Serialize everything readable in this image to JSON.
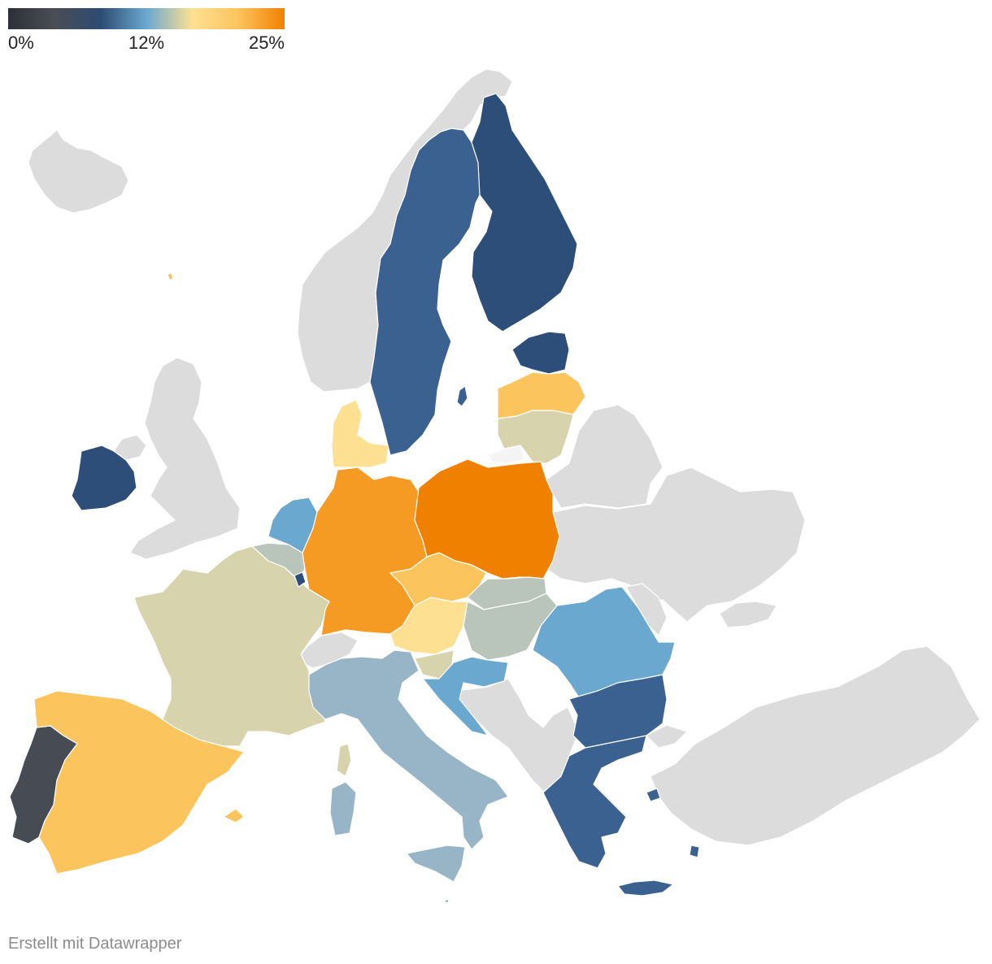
{
  "legend": {
    "ticks": [
      "0%",
      "12%",
      "25%"
    ],
    "gradient": [
      "#2c3037",
      "#4a4d55",
      "#2d4b72",
      "#6aa8d0",
      "#fde092",
      "#fcc45c",
      "#f08100"
    ]
  },
  "credit": "Erstellt mit Datawrapper",
  "colors": {
    "no_data": "#dcdcdc",
    "dark_navy": "#2c4e78",
    "navy": "#3b6190",
    "sky_blue": "#6aa8d0",
    "steel_blue": "#97b5c7",
    "sage": "#b9c5bb",
    "beige": "#d7d3ad",
    "pale_yellow": "#fde092",
    "light_gold": "#fcc45c",
    "orange": "#f59b23",
    "deep_orange": "#f08100",
    "charcoal": "#474b54",
    "near_white": "#f4f4f4"
  },
  "countries": [
    {
      "name": "Portugal",
      "color": "charcoal"
    },
    {
      "name": "Spain",
      "color": "light_gold"
    },
    {
      "name": "France",
      "color": "beige"
    },
    {
      "name": "Ireland",
      "color": "dark_navy"
    },
    {
      "name": "Belgium",
      "color": "sage"
    },
    {
      "name": "Luxembourg",
      "color": "dark_navy"
    },
    {
      "name": "Netherlands",
      "color": "sky_blue"
    },
    {
      "name": "Germany",
      "color": "orange"
    },
    {
      "name": "Denmark",
      "color": "pale_yellow"
    },
    {
      "name": "Sweden",
      "color": "navy"
    },
    {
      "name": "Finland",
      "color": "dark_navy"
    },
    {
      "name": "Estonia",
      "color": "dark_navy"
    },
    {
      "name": "Latvia",
      "color": "light_gold"
    },
    {
      "name": "Lithuania",
      "color": "beige"
    },
    {
      "name": "Poland",
      "color": "deep_orange"
    },
    {
      "name": "Czechia",
      "color": "light_gold"
    },
    {
      "name": "Slovakia",
      "color": "sage"
    },
    {
      "name": "Austria",
      "color": "pale_yellow"
    },
    {
      "name": "Hungary",
      "color": "sage"
    },
    {
      "name": "Slovenia",
      "color": "beige"
    },
    {
      "name": "Croatia",
      "color": "sky_blue"
    },
    {
      "name": "Italy",
      "color": "steel_blue"
    },
    {
      "name": "Romania",
      "color": "sky_blue"
    },
    {
      "name": "Bulgaria",
      "color": "navy"
    },
    {
      "name": "Greece",
      "color": "navy"
    },
    {
      "name": "Cyprus",
      "color": "navy"
    },
    {
      "name": "Malta",
      "color": "steel_blue"
    }
  ]
}
